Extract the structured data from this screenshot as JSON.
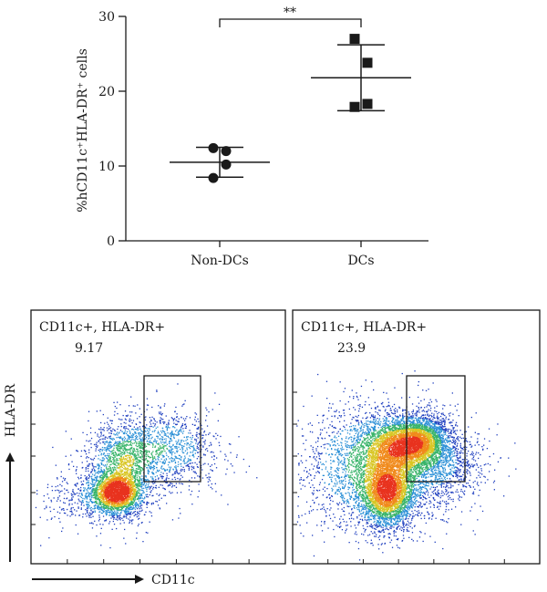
{
  "chart_data": [
    {
      "type": "scatter",
      "ylabel": "%hCD11c⁺HLA-DR⁺ cells",
      "ylim": [
        0,
        30
      ],
      "yticks": [
        0,
        10,
        20,
        30
      ],
      "categories": [
        "Non-DCs",
        "DCs"
      ],
      "series": [
        {
          "category": "Non-DCs",
          "marker": "circle",
          "values": [
            12.4,
            12.0,
            10.2,
            8.4
          ],
          "mean": 10.5,
          "sd_low": 8.5,
          "sd_high": 12.5
        },
        {
          "category": "DCs",
          "marker": "square",
          "values": [
            27.0,
            23.8,
            18.3,
            17.9
          ],
          "mean": 21.8,
          "sd_low": 17.4,
          "sd_high": 26.2
        }
      ],
      "annotation": "**",
      "grid": false
    },
    {
      "type": "scatter",
      "xlabel": "CD11c",
      "ylabel": "HLA-DR",
      "panels": [
        {
          "gate_label": "CD11c+, HLA-DR+",
          "gate_value": "9.17"
        },
        {
          "gate_label": "CD11c+, HLA-DR+",
          "gate_value": "23.9"
        }
      ]
    }
  ],
  "colors": {
    "ink": "#1a1a1a",
    "density_scale": [
      "#1f3fbf",
      "#2a8fd6",
      "#39b46a",
      "#d9c625",
      "#f08a1c",
      "#e8321e"
    ]
  }
}
